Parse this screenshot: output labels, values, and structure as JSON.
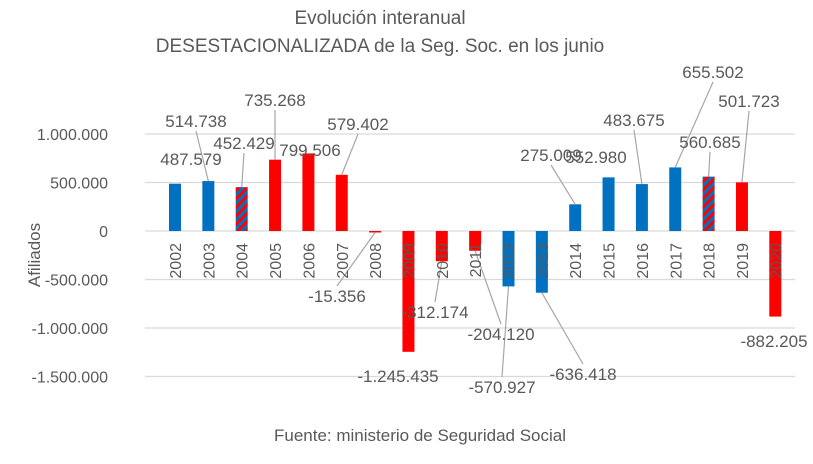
{
  "chart_data": {
    "type": "bar",
    "title": "Evolución interanual",
    "subtitle": "DESESTACIONALIZADA de la Seg. Soc. en los junio",
    "xlabel": "",
    "ylabel": "Afiliados",
    "source": "Fuente: ministerio de Seguridad Social",
    "ylim": [
      -1500000,
      1000000
    ],
    "yticks": [
      1000000,
      500000,
      0,
      -500000,
      -1000000,
      -1500000
    ],
    "ytick_labels": [
      "1.000.000",
      "500.000",
      "0",
      "-500.000",
      "-1.000.000",
      "-1.500.000"
    ],
    "grid": true,
    "categories": [
      "2002",
      "2003",
      "2004",
      "2005",
      "2006",
      "2007",
      "2008",
      "2009",
      "2010",
      "2011",
      "2012",
      "2013",
      "2014",
      "2015",
      "2016",
      "2017",
      "2018",
      "2019",
      "2020"
    ],
    "values": [
      487579,
      514738,
      452429,
      735268,
      799506,
      579402,
      -15356,
      -1245435,
      -312174,
      -204120,
      -570927,
      -636418,
      275009,
      552980,
      483675,
      655502,
      560685,
      501723,
      -882205
    ],
    "data_labels": [
      "487.579",
      "514.738",
      "452.429",
      "735.268",
      "799.506",
      "579.402",
      "-15.356",
      "-1.245.435",
      "-312.174",
      "-204.120",
      "-570.927",
      "-636.418",
      "275.009",
      "552.980",
      "483.675",
      "655.502",
      "560.685",
      "501.723",
      "-882.205"
    ],
    "bar_styles": [
      "blue",
      "blue",
      "striped",
      "red",
      "red",
      "red",
      "red",
      "red",
      "red",
      "red",
      "blue",
      "blue",
      "blue",
      "blue",
      "blue",
      "blue",
      "striped",
      "red",
      "red"
    ],
    "colors": {
      "blue": "#0070C0",
      "red": "#FF0000",
      "grid": "#D9D9D9",
      "text": "#595959"
    }
  }
}
